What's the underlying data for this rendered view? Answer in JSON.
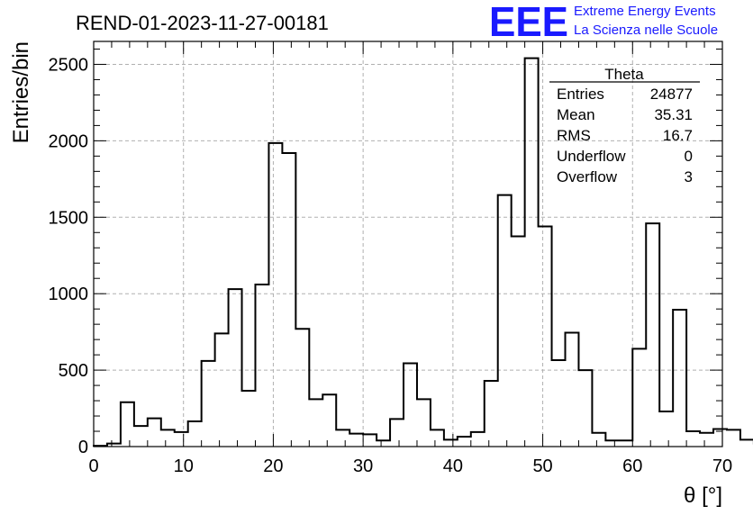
{
  "title": "REND-01-2023-11-27-00181",
  "logo": {
    "text": "EEE",
    "line1": "Extreme Energy Events",
    "line2": "La Scienza nelle Scuole",
    "color": "#1a1aff"
  },
  "stats": {
    "title": "Theta",
    "rows": [
      {
        "label": "Entries",
        "value": "24877"
      },
      {
        "label": "Mean",
        "value": "35.31"
      },
      {
        "label": "RMS",
        "value": "16.7"
      },
      {
        "label": "Underflow",
        "value": "0"
      },
      {
        "label": "Overflow",
        "value": "3"
      }
    ]
  },
  "chart_data": {
    "type": "histogram",
    "xlabel": "θ [°]",
    "ylabel": "Entries/bin",
    "xlim": [
      0,
      70
    ],
    "ylim": [
      0,
      2650
    ],
    "xticks": [
      0,
      10,
      20,
      30,
      40,
      50,
      60,
      70
    ],
    "yticks": [
      0,
      500,
      1000,
      1500,
      2000,
      2500
    ],
    "grid": true,
    "bin_width": 1.5,
    "bin_edges_start": 0,
    "values": [
      5,
      20,
      290,
      135,
      185,
      110,
      95,
      165,
      560,
      740,
      1030,
      365,
      1060,
      1985,
      1920,
      770,
      310,
      340,
      110,
      85,
      80,
      40,
      180,
      545,
      310,
      110,
      45,
      65,
      95,
      430,
      1645,
      1375,
      2540,
      1440,
      565,
      745,
      500,
      90,
      40,
      40,
      640,
      1460,
      230,
      895,
      100,
      90,
      115,
      110,
      45,
      20
    ]
  }
}
